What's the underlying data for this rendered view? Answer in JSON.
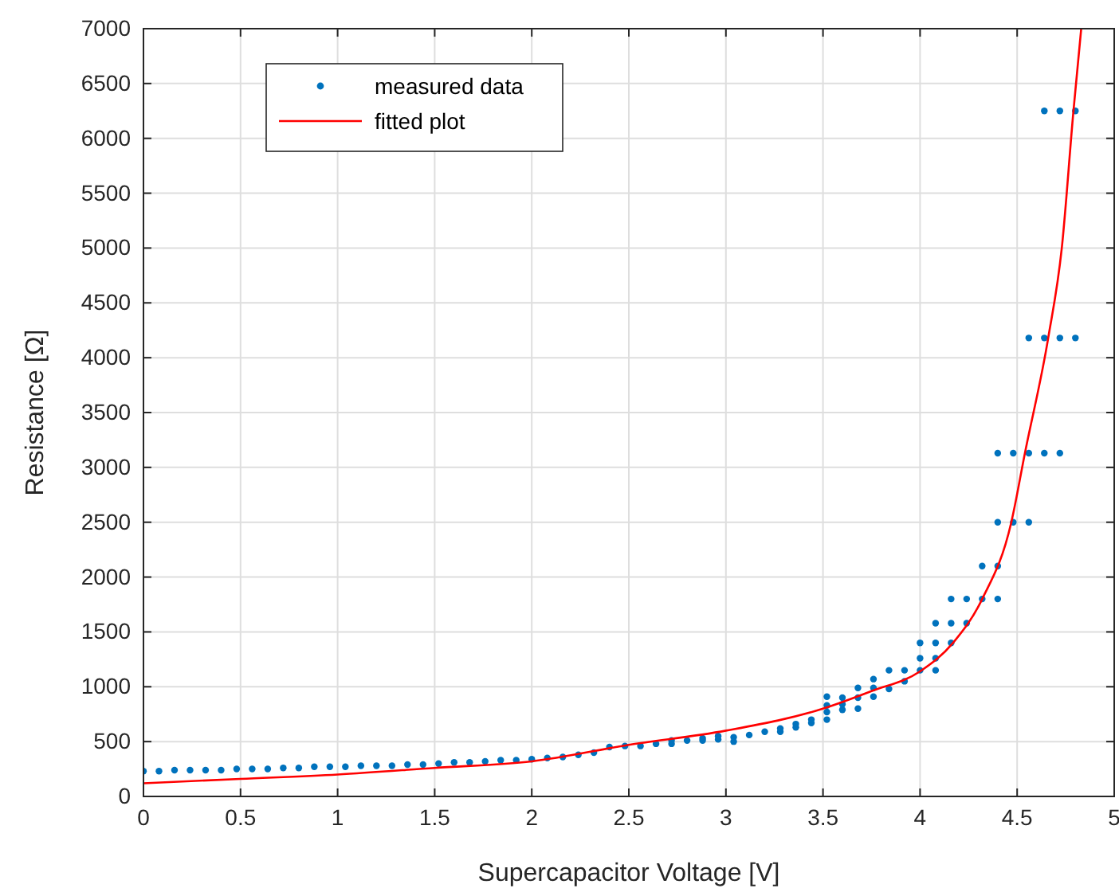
{
  "chart_data": {
    "type": "scatter",
    "xlabel": "Supercapacitor Voltage [V]",
    "ylabel": "Resistance [Ω]",
    "xlim": [
      0,
      5
    ],
    "ylim": [
      0,
      7000
    ],
    "xticks": [
      0,
      0.5,
      1,
      1.5,
      2,
      2.5,
      3,
      3.5,
      4,
      4.5,
      5
    ],
    "yticks": [
      0,
      500,
      1000,
      1500,
      2000,
      2500,
      3000,
      3500,
      4000,
      4500,
      5000,
      5500,
      6000,
      6500,
      7000
    ],
    "grid": true,
    "legend": "top left",
    "series": [
      {
        "name": "measured data",
        "marker": "circle",
        "color": "#0072bd",
        "x": [
          0,
          0.08,
          0.16,
          0.24,
          0.32,
          0.4,
          0.48,
          0.56,
          0.64,
          0.72,
          0.8,
          0.88,
          0.96,
          1.04,
          1.12,
          1.2,
          1.28,
          1.36,
          1.44,
          1.52,
          1.6,
          1.68,
          1.76,
          1.84,
          1.92,
          2,
          2.08,
          2.16,
          2.24,
          2.32,
          2.4,
          2.48,
          2.56,
          2.64,
          2.72,
          2.72,
          2.8,
          2.88,
          2.88,
          2.96,
          2.96,
          3.04,
          3.04,
          3.12,
          3.2,
          3.28,
          3.28,
          3.36,
          3.36,
          3.44,
          3.44,
          3.52,
          3.52,
          3.52,
          3.52,
          3.6,
          3.6,
          3.6,
          3.68,
          3.68,
          3.68,
          3.76,
          3.76,
          3.76,
          3.84,
          3.84,
          3.92,
          3.92,
          4,
          4,
          4,
          4.08,
          4.08,
          4.08,
          4.08,
          4.16,
          4.16,
          4.16,
          4.24,
          4.24,
          4.32,
          4.32,
          4.4,
          4.4,
          4.4,
          4.4,
          4.48,
          4.48,
          4.56,
          4.56,
          4.56,
          4.64,
          4.64,
          4.64,
          4.72,
          4.72,
          4.72,
          4.8,
          4.8
        ],
        "values": [
          230,
          230,
          240,
          240,
          240,
          240,
          250,
          250,
          250,
          260,
          260,
          270,
          270,
          270,
          280,
          280,
          280,
          290,
          290,
          300,
          310,
          310,
          320,
          330,
          330,
          340,
          350,
          360,
          380,
          400,
          450,
          460,
          460,
          480,
          480,
          510,
          510,
          510,
          530,
          520,
          550,
          500,
          540,
          560,
          590,
          590,
          620,
          630,
          660,
          670,
          700,
          700,
          770,
          830,
          910,
          790,
          840,
          900,
          800,
          900,
          990,
          910,
          990,
          1070,
          980,
          1150,
          1050,
          1150,
          1150,
          1260,
          1400,
          1150,
          1260,
          1400,
          1580,
          1400,
          1580,
          1800,
          1580,
          1800,
          1800,
          2100,
          1800,
          2100,
          2500,
          3130,
          2500,
          3130,
          2500,
          3130,
          4180,
          3130,
          4180,
          6250,
          3130,
          4180,
          6250,
          4180,
          6250
        ]
      },
      {
        "name": "fitted plot",
        "type": "line",
        "marker": "none",
        "line_style": "solid",
        "color": "#ff0000",
        "x": [
          0,
          0.5,
          1,
          1.5,
          2,
          2.5,
          3,
          3.5,
          3.75,
          4,
          4.17,
          4.32,
          4.47,
          4.54,
          4.66,
          4.73,
          4.79,
          4.83
        ],
        "values": [
          120,
          160,
          200,
          260,
          320,
          470,
          600,
          800,
          960,
          1140,
          1400,
          1800,
          2500,
          3130,
          4180,
          5000,
          6250,
          7000
        ]
      }
    ]
  }
}
